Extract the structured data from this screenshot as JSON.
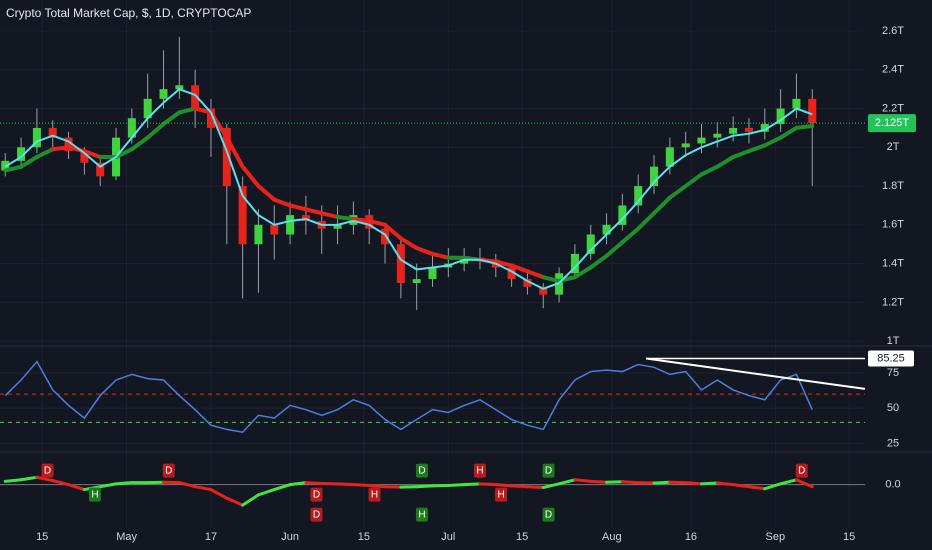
{
  "chart_data": [
    {
      "type": "candlestick",
      "title": "Crypto Total Market Cap, $, 1D, CRYPTOCAP",
      "x": [
        7,
        10,
        13,
        16,
        19,
        22,
        25,
        28,
        31,
        34,
        37,
        40,
        43,
        46,
        49,
        52,
        55,
        58,
        61,
        64,
        67,
        70,
        73,
        76,
        79,
        82,
        85,
        88,
        91,
        94,
        97,
        100,
        103,
        106,
        109,
        112,
        115,
        118,
        121,
        124,
        127,
        130,
        133,
        136,
        139,
        142,
        145,
        148,
        151,
        154,
        157,
        160
      ],
      "open": [
        1.88,
        1.93,
        2.0,
        2.1,
        2.05,
        1.98,
        1.92,
        1.85,
        2.05,
        2.15,
        2.25,
        2.3,
        2.32,
        2.2,
        2.1,
        1.8,
        1.5,
        1.6,
        1.55,
        1.65,
        1.62,
        1.58,
        1.6,
        1.65,
        1.58,
        1.5,
        1.3,
        1.32,
        1.38,
        1.4,
        1.43,
        1.42,
        1.38,
        1.32,
        1.28,
        1.24,
        1.35,
        1.45,
        1.55,
        1.6,
        1.7,
        1.8,
        1.9,
        2.0,
        2.02,
        2.05,
        2.07,
        2.1,
        2.08,
        2.12,
        2.2,
        2.25
      ],
      "high": [
        1.97,
        2.05,
        2.2,
        2.14,
        2.08,
        2.0,
        1.95,
        2.1,
        2.2,
        2.38,
        2.5,
        2.57,
        2.4,
        2.25,
        2.12,
        1.85,
        1.68,
        1.7,
        1.72,
        1.75,
        1.7,
        1.7,
        1.72,
        1.68,
        1.6,
        1.52,
        1.4,
        1.44,
        1.48,
        1.48,
        1.48,
        1.45,
        1.4,
        1.35,
        1.3,
        1.38,
        1.5,
        1.6,
        1.66,
        1.76,
        1.86,
        1.96,
        2.05,
        2.08,
        2.12,
        2.13,
        2.16,
        2.15,
        2.2,
        2.3,
        2.38,
        2.3
      ],
      "low": [
        1.85,
        1.9,
        1.97,
        2.0,
        1.94,
        1.86,
        1.8,
        1.83,
        2.02,
        2.1,
        2.2,
        2.25,
        2.1,
        1.95,
        1.5,
        1.22,
        1.25,
        1.42,
        1.5,
        1.55,
        1.45,
        1.5,
        1.55,
        1.5,
        1.4,
        1.22,
        1.16,
        1.28,
        1.33,
        1.36,
        1.37,
        1.33,
        1.28,
        1.24,
        1.17,
        1.2,
        1.32,
        1.42,
        1.5,
        1.57,
        1.66,
        1.76,
        1.86,
        1.95,
        1.97,
        2.0,
        2.03,
        2.02,
        2.04,
        2.08,
        2.15,
        1.8
      ],
      "close": [
        1.93,
        2.0,
        2.1,
        2.05,
        1.98,
        1.92,
        1.85,
        2.05,
        2.15,
        2.25,
        2.3,
        2.32,
        2.2,
        2.1,
        1.8,
        1.5,
        1.6,
        1.55,
        1.65,
        1.62,
        1.58,
        1.6,
        1.65,
        1.58,
        1.5,
        1.3,
        1.32,
        1.38,
        1.4,
        1.43,
        1.42,
        1.38,
        1.32,
        1.28,
        1.24,
        1.35,
        1.45,
        1.55,
        1.6,
        1.7,
        1.8,
        1.9,
        2.0,
        2.02,
        2.05,
        2.07,
        2.1,
        2.08,
        2.12,
        2.2,
        2.25,
        2.125
      ],
      "up_color": "#3fd43f",
      "down_color": "#e8231b",
      "fast_ma": {
        "color": "#5ce0f0",
        "values": [
          1.9,
          1.95,
          2.03,
          2.06,
          2.03,
          1.97,
          1.9,
          1.95,
          2.05,
          2.15,
          2.23,
          2.3,
          2.27,
          2.18,
          1.98,
          1.75,
          1.65,
          1.6,
          1.62,
          1.63,
          1.6,
          1.6,
          1.62,
          1.6,
          1.55,
          1.42,
          1.37,
          1.38,
          1.39,
          1.42,
          1.42,
          1.4,
          1.36,
          1.31,
          1.27,
          1.3,
          1.38,
          1.47,
          1.55,
          1.63,
          1.72,
          1.82,
          1.9,
          1.96,
          2.0,
          2.03,
          2.06,
          2.07,
          2.09,
          2.14,
          2.2,
          2.17
        ]
      },
      "slow_ma": {
        "above_color": "#e8231b",
        "below_color": "#1f8f2a",
        "values": [
          1.88,
          1.9,
          1.95,
          1.99,
          2.0,
          1.98,
          1.95,
          1.95,
          1.99,
          2.05,
          2.12,
          2.18,
          2.2,
          2.18,
          2.05,
          1.9,
          1.8,
          1.73,
          1.7,
          1.68,
          1.66,
          1.64,
          1.63,
          1.62,
          1.6,
          1.53,
          1.48,
          1.45,
          1.43,
          1.43,
          1.42,
          1.41,
          1.39,
          1.36,
          1.33,
          1.31,
          1.33,
          1.38,
          1.44,
          1.51,
          1.58,
          1.66,
          1.74,
          1.8,
          1.86,
          1.9,
          1.95,
          1.98,
          2.01,
          2.05,
          2.1,
          2.11
        ]
      },
      "price_line": {
        "value": 2.125,
        "label": "2.125T",
        "color": "#22c35a"
      },
      "xlim": [
        6,
        170
      ],
      "xticks": [
        {
          "value": 14,
          "label": "15"
        },
        {
          "value": 30,
          "label": "May"
        },
        {
          "value": 46,
          "label": "17"
        },
        {
          "value": 61,
          "label": "Jun"
        },
        {
          "value": 75,
          "label": "15"
        },
        {
          "value": 91,
          "label": "Jul"
        },
        {
          "value": 105,
          "label": "15"
        },
        {
          "value": 122,
          "label": "Aug"
        },
        {
          "value": 137,
          "label": "16"
        },
        {
          "value": 153,
          "label": "Sep"
        },
        {
          "value": 167,
          "label": "15"
        }
      ],
      "ylim": [
        0.98,
        2.76
      ],
      "yticks": [
        {
          "value": 1,
          "label": "1T"
        },
        {
          "value": 1.2,
          "label": "1.2T"
        },
        {
          "value": 1.4,
          "label": "1.4T"
        },
        {
          "value": 1.6,
          "label": "1.6T"
        },
        {
          "value": 1.8,
          "label": "1.8T"
        },
        {
          "value": 2,
          "label": "2T"
        },
        {
          "value": 2.2,
          "label": "2.2T"
        },
        {
          "value": 2.4,
          "label": "2.4T"
        },
        {
          "value": 2.6,
          "label": "2.6T"
        }
      ],
      "grid": true
    },
    {
      "type": "line",
      "x": [
        7,
        10,
        13,
        16,
        19,
        22,
        25,
        28,
        31,
        34,
        37,
        40,
        43,
        46,
        49,
        52,
        55,
        58,
        61,
        64,
        67,
        70,
        73,
        76,
        79,
        82,
        85,
        88,
        91,
        94,
        97,
        100,
        103,
        106,
        109,
        112,
        115,
        118,
        121,
        124,
        127,
        130,
        133,
        136,
        139,
        142,
        145,
        148,
        151,
        154,
        157,
        160
      ],
      "values": [
        59,
        70,
        83,
        63,
        52,
        43,
        59,
        70,
        74,
        71,
        70,
        59,
        49,
        38,
        35,
        33,
        45,
        43,
        52,
        49,
        45,
        49,
        56,
        52,
        42,
        35,
        42,
        49,
        47,
        52,
        56,
        49,
        42,
        38,
        35,
        56,
        70,
        76,
        77,
        76,
        81,
        79,
        74,
        76,
        63,
        70,
        63,
        59,
        56,
        70,
        74,
        49
      ],
      "color": "#4d7fe0",
      "bands": [
        {
          "value": 60,
          "color": "#e8231b"
        },
        {
          "value": 40,
          "color": "#3fd43f"
        }
      ],
      "level": {
        "value": 85.25,
        "color": "#ffffff"
      },
      "trendline": {
        "x": [
          128.5,
          170
        ],
        "y": [
          85.25,
          63.7
        ],
        "color": "#ffffff"
      },
      "ylim": [
        19,
        93.4
      ],
      "yticks": [
        25,
        50,
        75
      ],
      "grid": true
    },
    {
      "type": "oscillator",
      "x": [
        7,
        10,
        13,
        16,
        19,
        22,
        25,
        28,
        31,
        34,
        37,
        40,
        43,
        46,
        49,
        52,
        55,
        58,
        61,
        64,
        67,
        70,
        73,
        76,
        79,
        82,
        85,
        88,
        91,
        94,
        97,
        100,
        103,
        106,
        109,
        112,
        115,
        118,
        121,
        124,
        127,
        130,
        133,
        136,
        139,
        142,
        145,
        148,
        151,
        154,
        157,
        160
      ],
      "values": [
        0.08,
        0.12,
        0.18,
        0.1,
        0.0,
        -0.12,
        -0.05,
        0.02,
        0.05,
        0.05,
        0.06,
        0.05,
        -0.05,
        -0.12,
        -0.33,
        -0.5,
        -0.25,
        -0.12,
        0.0,
        0.05,
        0.03,
        0.02,
        0.0,
        -0.02,
        -0.05,
        -0.06,
        -0.05,
        -0.03,
        -0.02,
        0.0,
        0.02,
        0.0,
        -0.03,
        -0.05,
        -0.07,
        0.02,
        0.12,
        0.08,
        0.06,
        0.07,
        0.05,
        0.04,
        0.06,
        0.05,
        0.02,
        0.04,
        0.0,
        -0.05,
        -0.1,
        0.02,
        0.12,
        -0.05
      ],
      "rise_color": "#3fe63f",
      "fall_color": "#e8231b",
      "markers": [
        {
          "x": 15,
          "label": "D",
          "color": "#b71c1c"
        },
        {
          "x": 24,
          "label": "H",
          "color": "#1b7a1b"
        },
        {
          "x": 38,
          "label": "D",
          "color": "#b71c1c"
        },
        {
          "x": 66,
          "label": "D",
          "color": "#b71c1c"
        },
        {
          "x": 66,
          "label": "D",
          "color": "#b71c1c"
        },
        {
          "x": 77,
          "label": "H",
          "color": "#b71c1c"
        },
        {
          "x": 86,
          "label": "D",
          "color": "#1b7a1b"
        },
        {
          "x": 86,
          "label": "H",
          "color": "#1b7a1b"
        },
        {
          "x": 97,
          "label": "H",
          "color": "#b71c1c"
        },
        {
          "x": 101,
          "label": "H",
          "color": "#b71c1c"
        },
        {
          "x": 110,
          "label": "D",
          "color": "#1b7a1b"
        },
        {
          "x": 110,
          "label": "D",
          "color": "#1b7a1b"
        },
        {
          "x": 158,
          "label": "D",
          "color": "#b71c1c"
        }
      ],
      "ylim": [
        -1.6,
        0.8
      ],
      "yticks": [
        {
          "value": 0,
          "label": "0.0"
        }
      ]
    }
  ]
}
